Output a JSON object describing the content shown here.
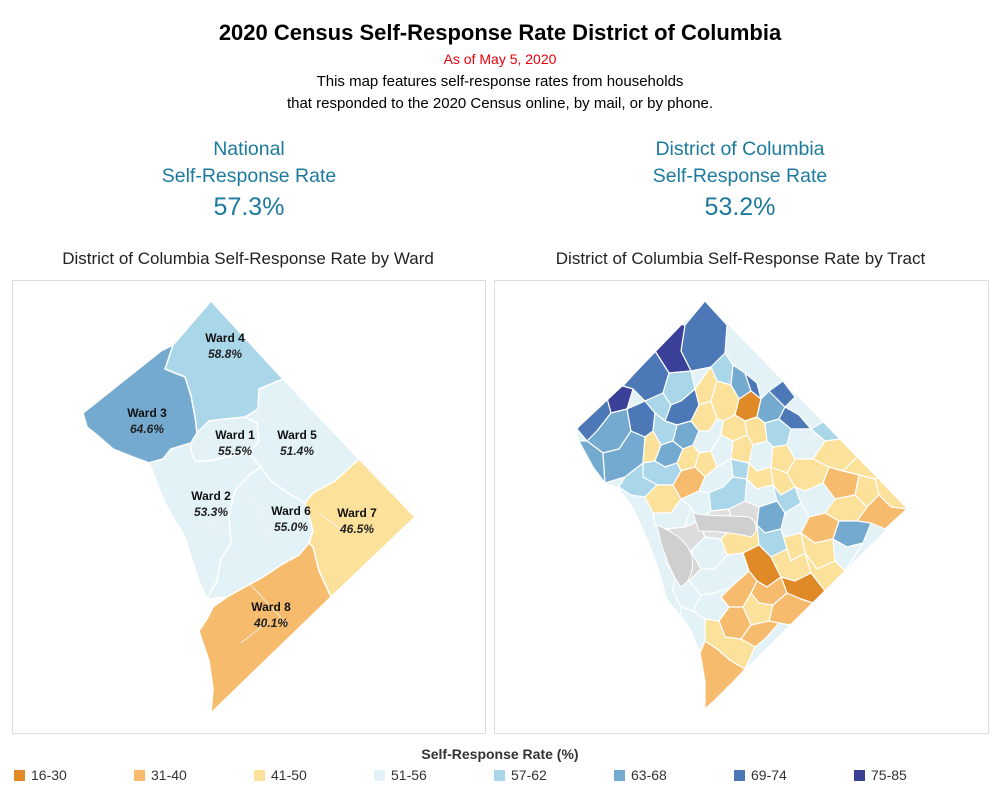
{
  "header": {
    "title": "2020 Census Self-Response Rate District of Columbia",
    "as_of": "As of May 5, 2020",
    "description_line1": "This map features self-response rates from households",
    "description_line2": "that responded to the 2020 Census online, by mail, or by phone."
  },
  "kpis": {
    "national": {
      "line1": "National",
      "line2": "Self-Response Rate",
      "value": "57.3%"
    },
    "dc": {
      "line1": "District of Columbia",
      "line2": "Self-Response Rate",
      "value": "53.2%"
    }
  },
  "ward_map": {
    "title": "District of Columbia Self-Response Rate by Ward",
    "wards": [
      {
        "name": "Ward 1",
        "rate": "55.5%",
        "value": 55.5,
        "color": "#e3f2f7"
      },
      {
        "name": "Ward 2",
        "rate": "53.3%",
        "value": 53.3,
        "color": "#e3f2f7"
      },
      {
        "name": "Ward 3",
        "rate": "64.6%",
        "value": 64.6,
        "color": "#74aad0"
      },
      {
        "name": "Ward 4",
        "rate": "58.8%",
        "value": 58.8,
        "color": "#a9d6e8"
      },
      {
        "name": "Ward 5",
        "rate": "51.4%",
        "value": 51.4,
        "color": "#e3f2f7"
      },
      {
        "name": "Ward 6",
        "rate": "55.0%",
        "value": 55.0,
        "color": "#e3f2f7"
      },
      {
        "name": "Ward 7",
        "rate": "46.5%",
        "value": 46.5,
        "color": "#fbe199"
      },
      {
        "name": "Ward 8",
        "rate": "40.1%",
        "value": 40.1,
        "color": "#f7bb6e"
      }
    ]
  },
  "tract_map": {
    "title": "District of Columbia Self-Response Rate by Tract"
  },
  "legend": {
    "title": "Self-Response Rate (%)",
    "items": [
      {
        "label": "16-30",
        "color": "#e08a27"
      },
      {
        "label": "31-40",
        "color": "#f7bb6e"
      },
      {
        "label": "41-50",
        "color": "#fbe199"
      },
      {
        "label": "51-56",
        "color": "#e3f2f7"
      },
      {
        "label": "57-62",
        "color": "#a9d6e8"
      },
      {
        "label": "63-68",
        "color": "#74aad0"
      },
      {
        "label": "69-74",
        "color": "#4c78b8"
      },
      {
        "label": "75-85",
        "color": "#3a3f98"
      }
    ]
  }
}
